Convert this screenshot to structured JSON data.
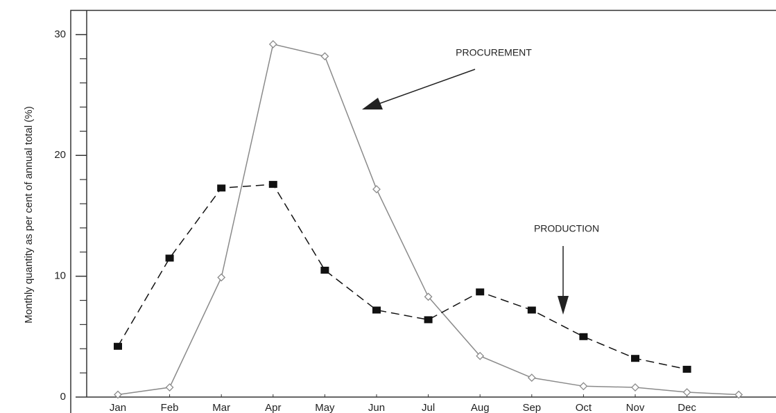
{
  "chart_data": {
    "type": "line",
    "y_label": "Monthly quantity as per cent of annual total (%)",
    "categories": [
      "Jan",
      "Feb",
      "Mar",
      "Apr",
      "May",
      "Jun",
      "Jul",
      "Aug",
      "Sep",
      "Oct",
      "Nov",
      "Dec",
      null
    ],
    "series": [
      {
        "name": "PROCUREMENT",
        "color": "#8a8a8a",
        "line_style": "solid",
        "marker": "diamond",
        "values": [
          0.2,
          0.8,
          9.9,
          29.2,
          28.2,
          17.2,
          8.3,
          3.4,
          1.6,
          0.9,
          0.8,
          0.4,
          0.2
        ]
      },
      {
        "name": "PRODUCTION",
        "color": "#111111",
        "line_style": "dashed",
        "marker": "square",
        "values": [
          4.2,
          11.5,
          17.3,
          17.6,
          10.5,
          7.2,
          6.4,
          8.7,
          7.2,
          5.0,
          3.2,
          2.3,
          null
        ]
      }
    ],
    "ylim": [
      0,
      32
    ],
    "yticks": [
      0,
      10,
      20,
      30
    ],
    "grid": false
  }
}
